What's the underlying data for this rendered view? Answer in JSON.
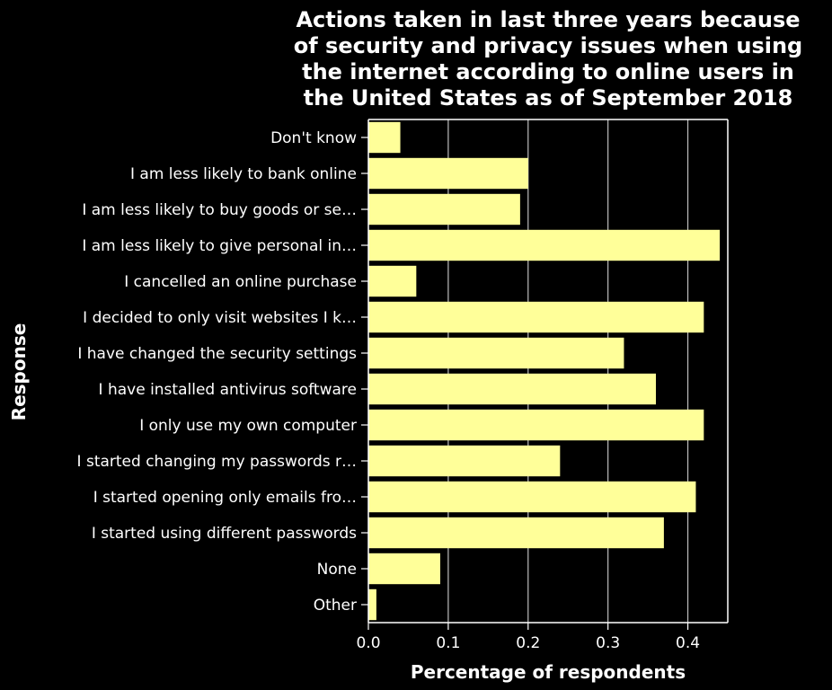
{
  "chart_data": {
    "type": "bar",
    "orientation": "horizontal",
    "title_lines": [
      "Actions taken in last three years because",
      "of security and privacy issues when using",
      "the internet according to online users in",
      "the United States as of September 2018"
    ],
    "xlabel": "Percentage of respondents",
    "ylabel": "Response",
    "categories": [
      "Don't know",
      "I am less likely to bank online",
      "I am less likely to buy goods or se…",
      "I am less likely to give personal in…",
      "I cancelled an online purchase",
      "I decided to only visit websites I k…",
      "I have changed the security settings",
      "I have installed antivirus software",
      "I only use my own computer",
      "I started changing my passwords r…",
      "I started opening only emails fro…",
      "I started using different passwords",
      "None",
      "Other"
    ],
    "values": [
      0.04,
      0.2,
      0.19,
      0.44,
      0.06,
      0.42,
      0.32,
      0.36,
      0.42,
      0.24,
      0.41,
      0.37,
      0.09,
      0.01
    ],
    "xlim": [
      0,
      0.45
    ],
    "xticks": [
      0.0,
      0.1,
      0.2,
      0.3,
      0.4
    ],
    "xtick_labels": [
      "0.0",
      "0.1",
      "0.2",
      "0.3",
      "0.4"
    ],
    "grid": "vertical",
    "colors": {
      "background": "#000000",
      "bar": "#ffff99",
      "text": "#ffffff",
      "grid": "#bdbdbd",
      "axis": "#ffffff"
    }
  }
}
